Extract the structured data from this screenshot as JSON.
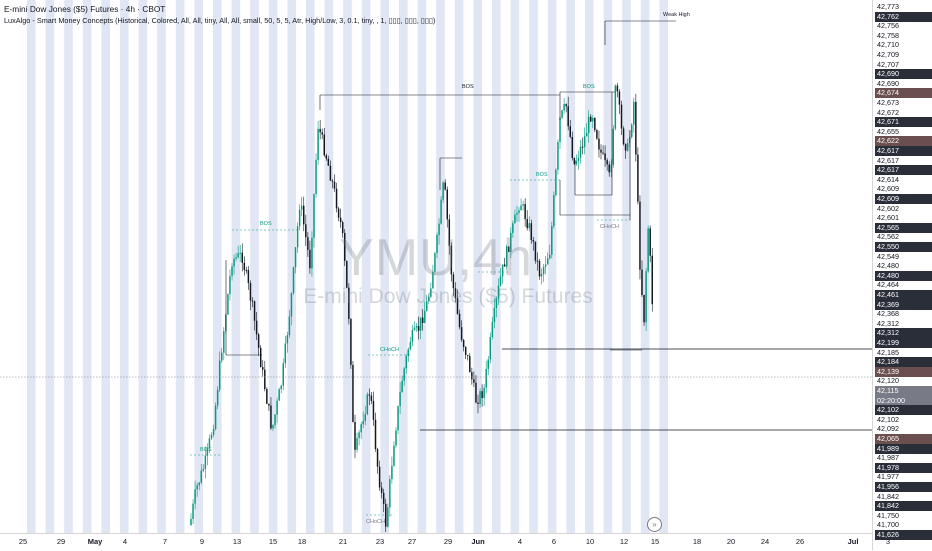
{
  "header": {
    "title": "E-mini Dow Jones ($5) Futures · 4h · CBOT",
    "indicator": "LuxAlgo - Smart Money Concepts (Historical, Colored, All, All, tiny, All, All, small, 50, 5, 5, Atr, High/Low, 3, 0.1, tiny, , 1, ▯▯▯, ▯▯▯, ▯▯▯)"
  },
  "watermark": {
    "symbol": "YMU,4h",
    "description": "E-mini Dow Jones ($5) Futures"
  },
  "annotations": {
    "weak_high": "Weak High",
    "bos": "BOS",
    "choch": "CHoCH"
  },
  "price_axis": {
    "labels": [
      {
        "text": "42,773",
        "style": "plain"
      },
      {
        "text": "42,762",
        "style": "dark"
      },
      {
        "text": "42,756",
        "style": "plain"
      },
      {
        "text": "42,758",
        "style": "plain"
      },
      {
        "text": "42,710",
        "style": "plain"
      },
      {
        "text": "42,709",
        "style": "plain"
      },
      {
        "text": "42,707",
        "style": "plain"
      },
      {
        "text": "42,690",
        "style": "dark"
      },
      {
        "text": "42,690",
        "style": "plain"
      },
      {
        "text": "42,674",
        "style": "brown"
      },
      {
        "text": "42,673",
        "style": "plain"
      },
      {
        "text": "42,672",
        "style": "plain"
      },
      {
        "text": "42,671",
        "style": "dark"
      },
      {
        "text": "42,655",
        "style": "plain"
      },
      {
        "text": "42,622",
        "style": "brown"
      },
      {
        "text": "42,617",
        "style": "dark"
      },
      {
        "text": "42,617",
        "style": "plain"
      },
      {
        "text": "42,617",
        "style": "dark"
      },
      {
        "text": "42,614",
        "style": "plain"
      },
      {
        "text": "42,609",
        "style": "plain"
      },
      {
        "text": "42,609",
        "style": "dark"
      },
      {
        "text": "42,602",
        "style": "plain"
      },
      {
        "text": "42,601",
        "style": "plain"
      },
      {
        "text": "42,565",
        "style": "dark"
      },
      {
        "text": "42,562",
        "style": "plain"
      },
      {
        "text": "42,550",
        "style": "dark"
      },
      {
        "text": "42,549",
        "style": "plain"
      },
      {
        "text": "42,480",
        "style": "plain"
      },
      {
        "text": "42,480",
        "style": "dark"
      },
      {
        "text": "42,464",
        "style": "plain"
      },
      {
        "text": "42,461",
        "style": "dark"
      },
      {
        "text": "42,369",
        "style": "dark"
      },
      {
        "text": "42,368",
        "style": "plain"
      },
      {
        "text": "42,312",
        "style": "plain"
      },
      {
        "text": "42,312",
        "style": "dark"
      },
      {
        "text": "42,199",
        "style": "dark"
      },
      {
        "text": "42,185",
        "style": "plain"
      },
      {
        "text": "42,184",
        "style": "dark"
      },
      {
        "text": "42,139",
        "style": "brown"
      },
      {
        "text": "42,120",
        "style": "plain"
      },
      {
        "text": "42,115",
        "style": "grey"
      },
      {
        "text": "02:20:00",
        "style": "grey"
      },
      {
        "text": "42,102",
        "style": "dark"
      },
      {
        "text": "42,102",
        "style": "plain"
      },
      {
        "text": "42,092",
        "style": "plain"
      },
      {
        "text": "42,065",
        "style": "brown"
      },
      {
        "text": "41,989",
        "style": "dark"
      },
      {
        "text": "41,987",
        "style": "plain"
      },
      {
        "text": "41,978",
        "style": "dark"
      },
      {
        "text": "41,977",
        "style": "plain"
      },
      {
        "text": "41,956",
        "style": "dark"
      },
      {
        "text": "41,842",
        "style": "plain"
      },
      {
        "text": "41,842",
        "style": "dark"
      },
      {
        "text": "41,750",
        "style": "plain"
      },
      {
        "text": "41,700",
        "style": "plain"
      },
      {
        "text": "41,626",
        "style": "dark"
      }
    ]
  },
  "time_axis": {
    "labels": [
      {
        "text": "25",
        "bold": false
      },
      {
        "text": "29",
        "bold": false
      },
      {
        "text": "May",
        "bold": true
      },
      {
        "text": "4",
        "bold": false
      },
      {
        "text": "7",
        "bold": false
      },
      {
        "text": "9",
        "bold": false
      },
      {
        "text": "13",
        "bold": false
      },
      {
        "text": "15",
        "bold": false
      },
      {
        "text": "18",
        "bold": false
      },
      {
        "text": "21",
        "bold": false
      },
      {
        "text": "23",
        "bold": false
      },
      {
        "text": "27",
        "bold": false
      },
      {
        "text": "29",
        "bold": false
      },
      {
        "text": "Jun",
        "bold": true
      },
      {
        "text": "4",
        "bold": false
      },
      {
        "text": "6",
        "bold": false
      },
      {
        "text": "10",
        "bold": false
      },
      {
        "text": "12",
        "bold": false
      },
      {
        "text": "15",
        "bold": false
      },
      {
        "text": "18",
        "bold": false
      },
      {
        "text": "20",
        "bold": false
      },
      {
        "text": "24",
        "bold": false
      },
      {
        "text": "26",
        "bold": false
      },
      {
        "text": "Jul",
        "bold": true
      },
      {
        "text": "3",
        "bold": false
      }
    ]
  },
  "colors": {
    "bull": "#089981",
    "bear": "#131722",
    "session_band": "#dde3f3",
    "grid_line": "#131722"
  }
}
